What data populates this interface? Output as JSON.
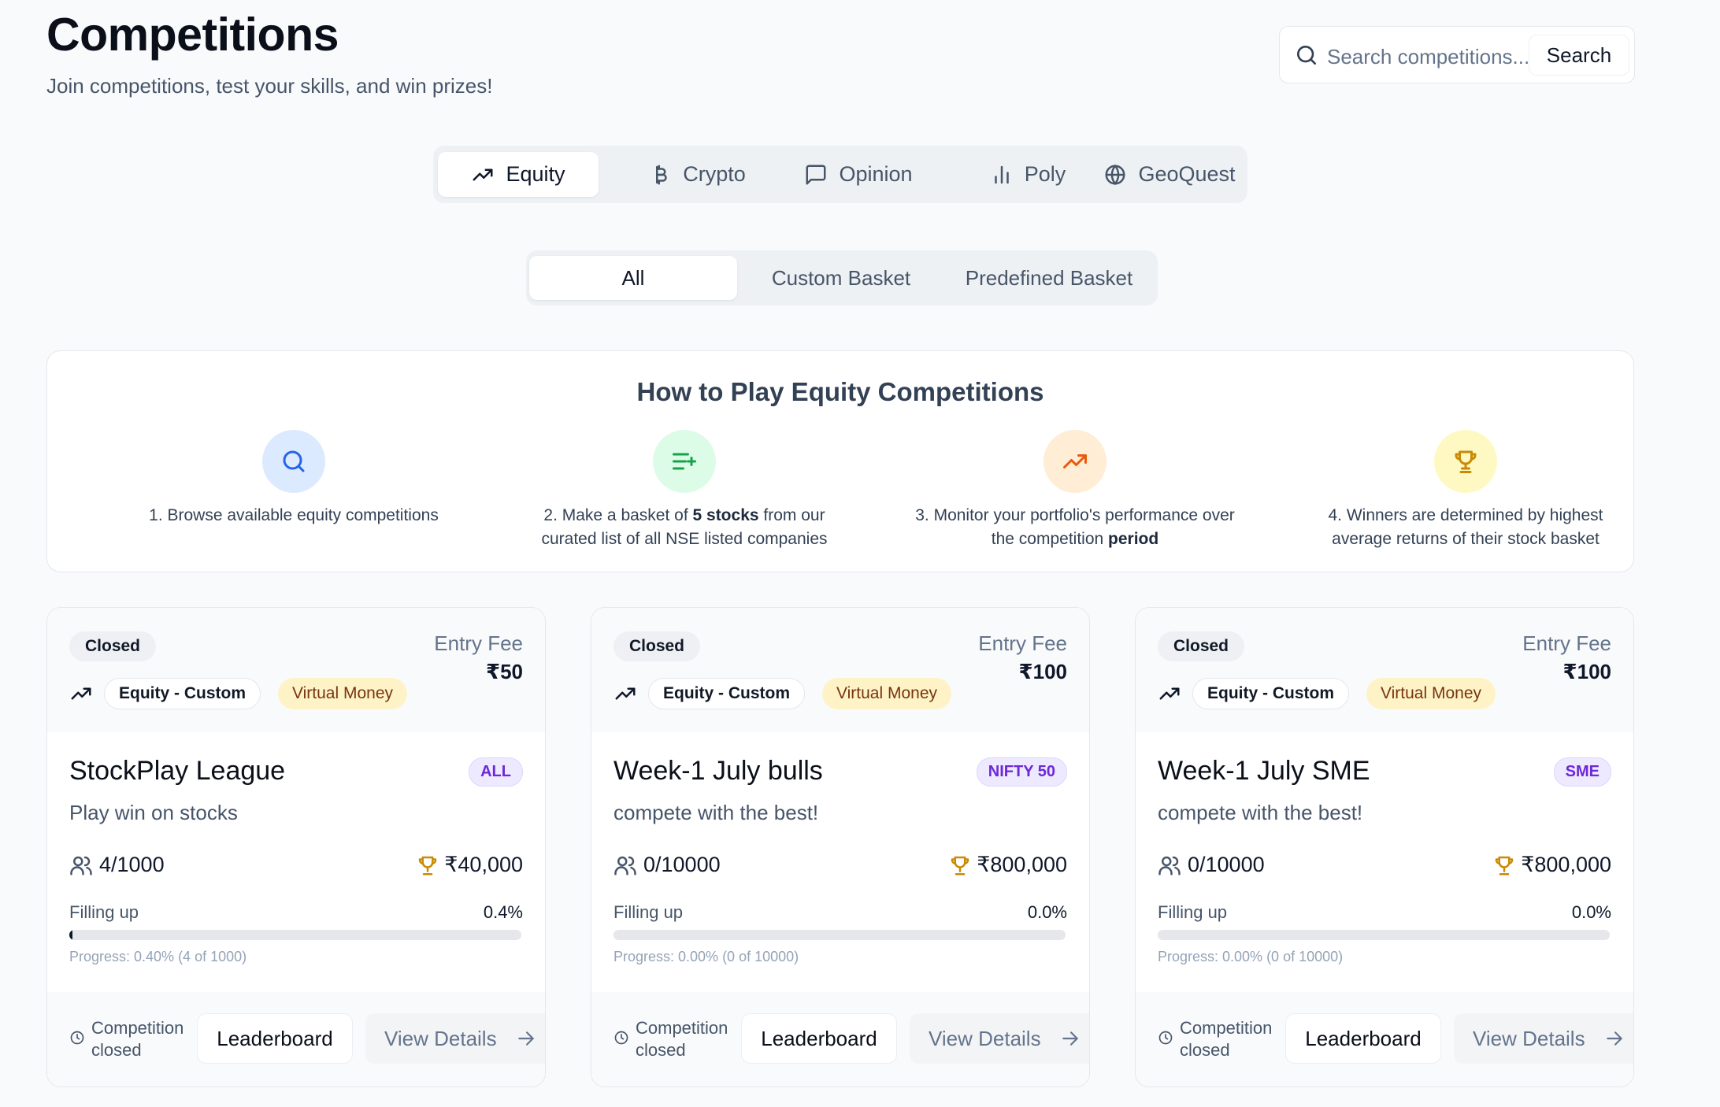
{
  "header": {
    "title": "Competitions",
    "subtitle": "Join competitions, test your skills, and win prizes!"
  },
  "search": {
    "placeholder": "Search competitions...",
    "button_label": "Search"
  },
  "category_tabs": [
    {
      "label": "Equity",
      "icon": "trending-up-icon",
      "active": true
    },
    {
      "label": "Crypto",
      "icon": "bitcoin-icon",
      "active": false
    },
    {
      "label": "Opinion",
      "icon": "message-square-icon",
      "active": false
    },
    {
      "label": "Poly",
      "icon": "bar-chart-icon",
      "active": false
    },
    {
      "label": "GeoQuest",
      "icon": "globe-icon",
      "active": false
    }
  ],
  "sub_tabs": [
    {
      "label": "All",
      "active": true
    },
    {
      "label": "Custom Basket",
      "active": false
    },
    {
      "label": "Predefined Basket",
      "active": false
    }
  ],
  "how_to_play": {
    "title": "How to Play Equity Competitions",
    "steps": [
      {
        "icon": "search-icon",
        "color": "#2563eb",
        "bg": "#dbeafe",
        "pre": "1. Browse available equity competitions",
        "bold": "",
        "post": "",
        "line2": ""
      },
      {
        "icon": "list-plus-icon",
        "color": "#16a34a",
        "bg": "#dcfce7",
        "pre": "2. Make a basket of ",
        "bold": "5 stocks",
        "post": " from our",
        "line2": "curated list of all NSE listed companies"
      },
      {
        "icon": "trending-up-icon",
        "color": "#ea580c",
        "bg": "#ffedd5",
        "pre": "3. Monitor your portfolio's performance over",
        "bold": "",
        "post": "",
        "line2": "the competition ",
        "line2_bold": "period"
      },
      {
        "icon": "trophy-icon",
        "color": "#ca8a04",
        "bg": "#fef9c3",
        "pre": "4. Winners are determined by highest",
        "bold": "",
        "post": "",
        "line2": "average returns of their stock basket"
      }
    ]
  },
  "competitions": [
    {
      "status": "Closed",
      "type": "Equity - Custom",
      "money": "Virtual Money",
      "entry_fee_label": "Entry Fee",
      "entry_fee": "₹50",
      "name": "StockPlay League",
      "index": "ALL",
      "description": "Play win on stocks",
      "participants": "4/1000",
      "prize": "₹40,000",
      "fill_label": "Filling up",
      "fill_percent_text": "0.4%",
      "fill_fraction": 0.004,
      "progress_text": "Progress: 0.40% (4 of 1000)",
      "closed_text": "Competition closed",
      "leaderboard_label": "Leaderboard",
      "details_label": "View Details"
    },
    {
      "status": "Closed",
      "type": "Equity - Custom",
      "money": "Virtual Money",
      "entry_fee_label": "Entry Fee",
      "entry_fee": "₹100",
      "name": "Week-1 July bulls",
      "index": "NIFTY 50",
      "description": "compete with the best!",
      "participants": "0/10000",
      "prize": "₹800,000",
      "fill_label": "Filling up",
      "fill_percent_text": "0.0%",
      "fill_fraction": 0,
      "progress_text": "Progress: 0.00% (0 of 10000)",
      "closed_text": "Competition closed",
      "leaderboard_label": "Leaderboard",
      "details_label": "View Details"
    },
    {
      "status": "Closed",
      "type": "Equity - Custom",
      "money": "Virtual Money",
      "entry_fee_label": "Entry Fee",
      "entry_fee": "₹100",
      "name": "Week-1 July SME",
      "index": "SME",
      "description": "compete with the best!",
      "participants": "0/10000",
      "prize": "₹800,000",
      "fill_label": "Filling up",
      "fill_percent_text": "0.0%",
      "fill_fraction": 0,
      "progress_text": "Progress: 0.00% (0 of 10000)",
      "closed_text": "Competition closed",
      "leaderboard_label": "Leaderboard",
      "details_label": "View Details"
    }
  ]
}
